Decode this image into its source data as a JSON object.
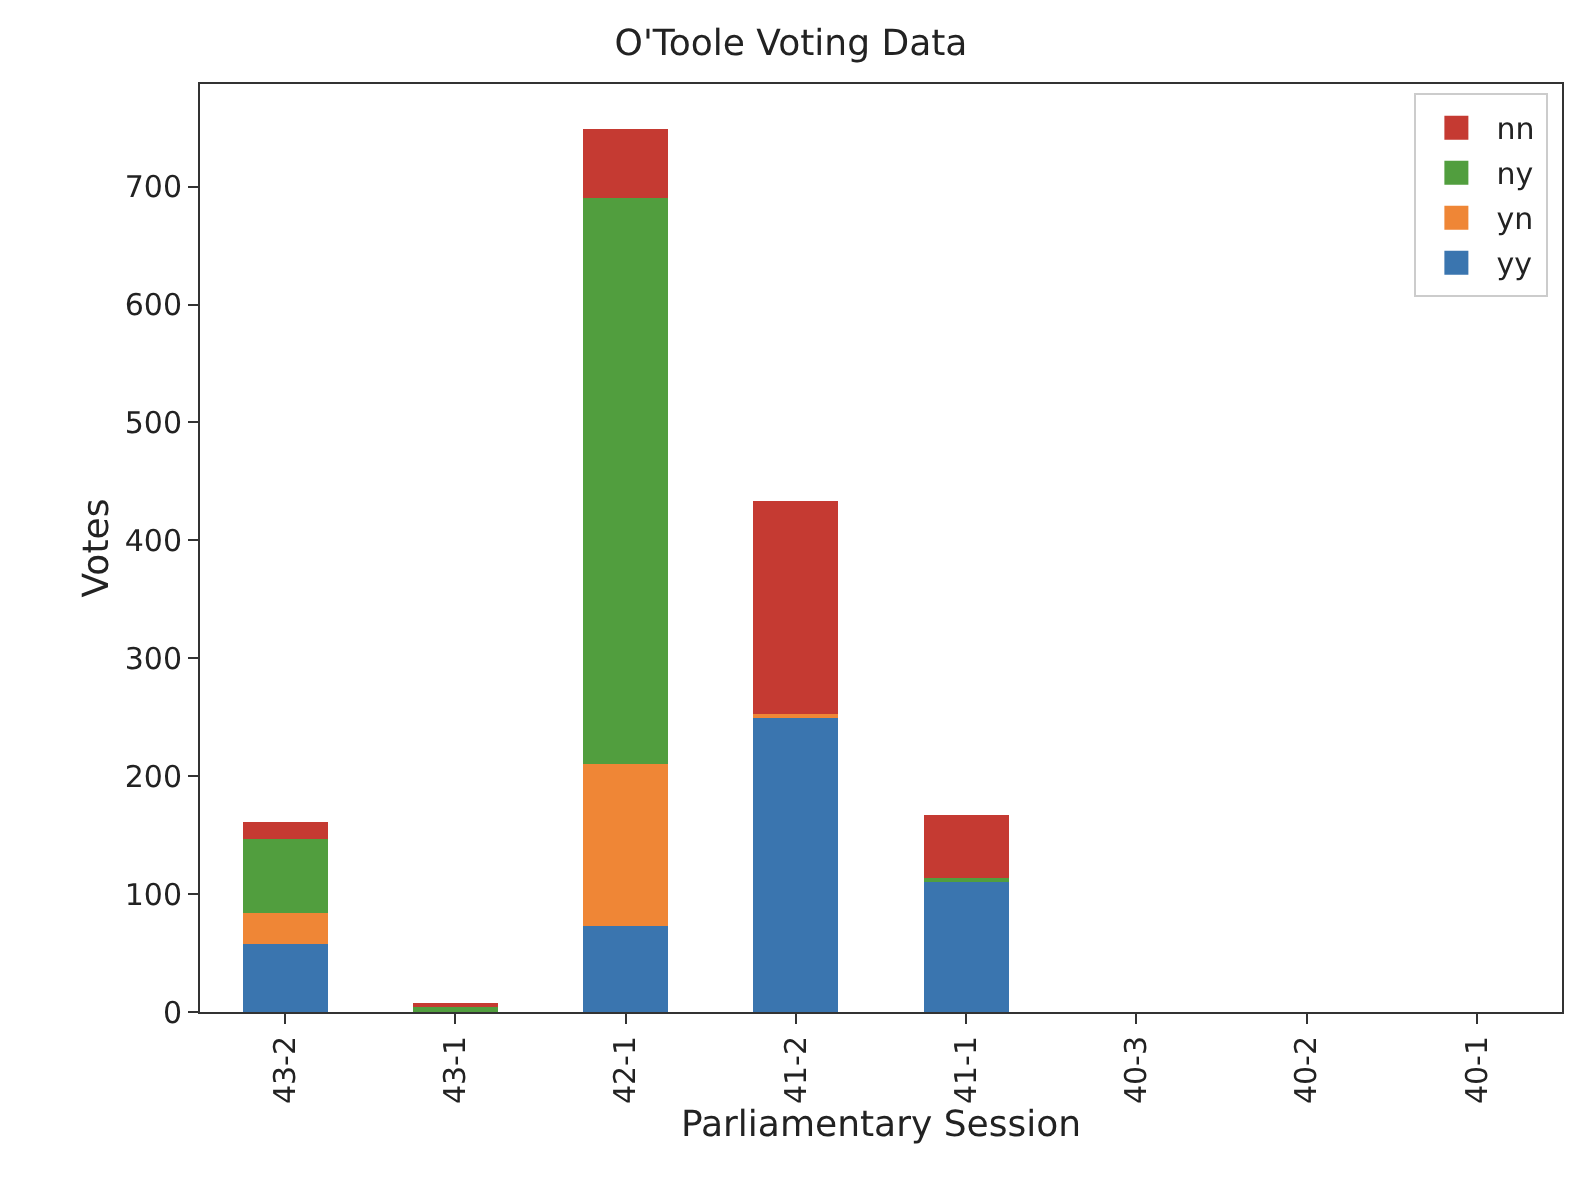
{
  "chart_data": {
    "type": "bar",
    "title": "O'Toole Voting Data",
    "xlabel": "Parliamentary Session",
    "ylabel": "Votes",
    "categories": [
      "43-2",
      "43-1",
      "42-1",
      "41-2",
      "41-1",
      "40-3",
      "40-2",
      "40-1"
    ],
    "series": [
      {
        "name": "yy",
        "color": "#3a75af",
        "values": [
          58,
          0,
          73,
          250,
          111,
          0,
          0,
          0
        ]
      },
      {
        "name": "yn",
        "color": "#ef8636",
        "values": [
          26,
          0,
          137,
          3,
          0,
          0,
          0,
          0
        ]
      },
      {
        "name": "ny",
        "color": "#519e3e",
        "values": [
          63,
          4,
          480,
          0,
          3,
          0,
          0,
          0
        ]
      },
      {
        "name": "nn",
        "color": "#c53a32",
        "values": [
          14,
          4,
          59,
          180,
          53,
          0,
          0,
          0
        ]
      }
    ],
    "stacked": true,
    "ylim": [
      0,
      787
    ],
    "yticks": [
      0,
      100,
      200,
      300,
      400,
      500,
      600,
      700
    ],
    "grid": false,
    "legend": "top right"
  }
}
